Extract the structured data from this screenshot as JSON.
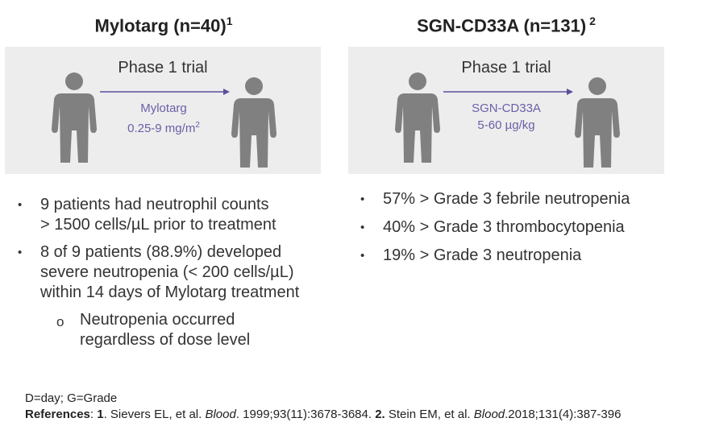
{
  "left": {
    "title": "Mylotarg (n=40)",
    "title_sup": "1",
    "box": {
      "heading": "Phase 1 trial",
      "drug": "Mylotarg",
      "dose": "0.25-9 mg/m",
      "dose_sup": "2"
    },
    "bullets": [
      [
        "9 patients had neutrophil counts",
        "> 1500 cells/µL prior to treatment"
      ],
      [
        "8 of 9 patients (88.9%) developed",
        "severe neutropenia (< 200 cells/µL)",
        "within 14 days of Mylotarg treatment"
      ]
    ],
    "sub_marker": "o",
    "sub_bullet": [
      "Neutropenia occurred",
      "regardless of dose level"
    ]
  },
  "right": {
    "title": "SGN-CD33A (n=131)",
    "title_sup": " 2",
    "box": {
      "heading": "Phase 1 trial",
      "drug": "SGN-CD33A",
      "dose": "5-60 µg/kg"
    },
    "bullets": [
      [
        "57% > Grade 3 febrile neutropenia"
      ],
      [
        "40% > Grade 3 thrombocytopenia"
      ],
      [
        "19% > Grade 3 neutropenia"
      ]
    ]
  },
  "bullet_marker": "•",
  "footer": {
    "abbreviations": "D=day; G=Grade",
    "references": [
      {
        "text": "References",
        "style": "bold"
      },
      {
        "text": ": ",
        "style": "normal"
      },
      {
        "text": "1",
        "style": "bold"
      },
      {
        "text": ". Sievers EL, et al. ",
        "style": "normal"
      },
      {
        "text": "Blood",
        "style": "italic"
      },
      {
        "text": ". 1999;93(11):3678-3684. ",
        "style": "normal"
      },
      {
        "text": "2.",
        "style": "bold"
      },
      {
        "text": " Stein EM, et al. ",
        "style": "normal"
      },
      {
        "text": "Blood",
        "style": "italic"
      },
      {
        "text": ".2018;131(4):387-396",
        "style": "normal"
      }
    ]
  }
}
